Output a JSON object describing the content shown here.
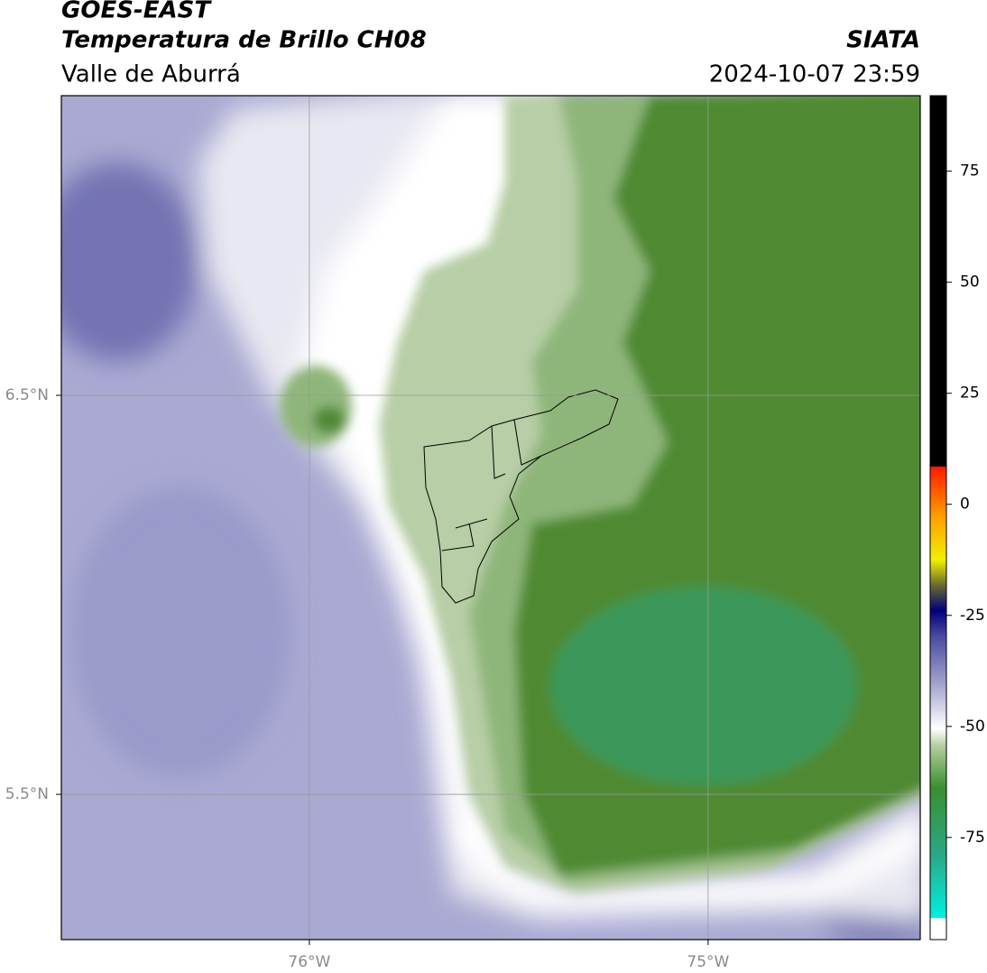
{
  "header": {
    "title": "GOES-EAST",
    "subtitle": "Temperatura de Brillo CH08",
    "region": "Valle de Aburrá",
    "source": "SIATA",
    "datetime": "2024-10-07 23:59"
  },
  "map": {
    "lonlim": [
      -76.622,
      -74.468
    ],
    "latlim": [
      5.136,
      7.251
    ],
    "lon_ticks": [
      {
        "value": -76,
        "label": "76°W"
      },
      {
        "value": -75,
        "label": "75°W"
      }
    ],
    "lat_ticks": [
      {
        "value": 6.5,
        "label": "6.5°N"
      },
      {
        "value": 5.5,
        "label": "5.5°N"
      }
    ],
    "grid": true
  },
  "colorbar": {
    "lim": [
      -98,
      92
    ],
    "ticks": [
      75,
      50,
      25,
      0,
      -25,
      -50,
      -75
    ]
  }
}
